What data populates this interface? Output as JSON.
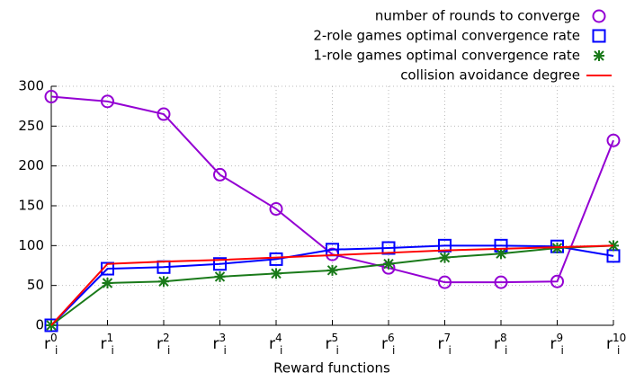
{
  "chart_data": {
    "type": "line",
    "x_label": "Reward functions",
    "categories": [
      {
        "base": "r",
        "sup": "0",
        "sub": "i"
      },
      {
        "base": "r",
        "sup": "1",
        "sub": "i"
      },
      {
        "base": "r",
        "sup": "2",
        "sub": "i"
      },
      {
        "base": "r",
        "sup": "3",
        "sub": "i"
      },
      {
        "base": "r",
        "sup": "4",
        "sub": "i"
      },
      {
        "base": "r",
        "sup": "5",
        "sub": "i"
      },
      {
        "base": "r",
        "sup": "6",
        "sub": "i"
      },
      {
        "base": "r",
        "sup": "7",
        "sub": "i"
      },
      {
        "base": "r",
        "sup": "8",
        "sub": "i"
      },
      {
        "base": "r",
        "sup": "9",
        "sub": "i"
      },
      {
        "base": "r",
        "sup": "10",
        "sub": "i"
      }
    ],
    "series": [
      {
        "name": "number of rounds to converge",
        "color": "#9400d3",
        "marker": "circle",
        "values": [
          287,
          281,
          265,
          189,
          146,
          89,
          72,
          54,
          54,
          55,
          232
        ]
      },
      {
        "name": "2-role games optimal convergence rate",
        "color": "#0000ff",
        "marker": "square",
        "values": [
          0,
          71,
          73,
          77,
          83,
          95,
          97,
          100,
          100,
          99,
          87
        ]
      },
      {
        "name": "1-role games optimal convergence rate",
        "color": "#1a7a1a",
        "marker": "asterisk",
        "values": [
          0,
          53,
          55,
          61,
          65,
          69,
          77,
          85,
          90,
          97,
          100
        ]
      },
      {
        "name": "collision avoidance degree",
        "color": "#ff0000",
        "marker": "none",
        "values": [
          0,
          77,
          80,
          82,
          85,
          88,
          91,
          94,
          96,
          98,
          100
        ]
      }
    ],
    "ylim": [
      0,
      300
    ],
    "yticks": [
      0,
      50,
      100,
      150,
      200,
      250,
      300
    ],
    "grid": true,
    "legend": "top-right"
  }
}
